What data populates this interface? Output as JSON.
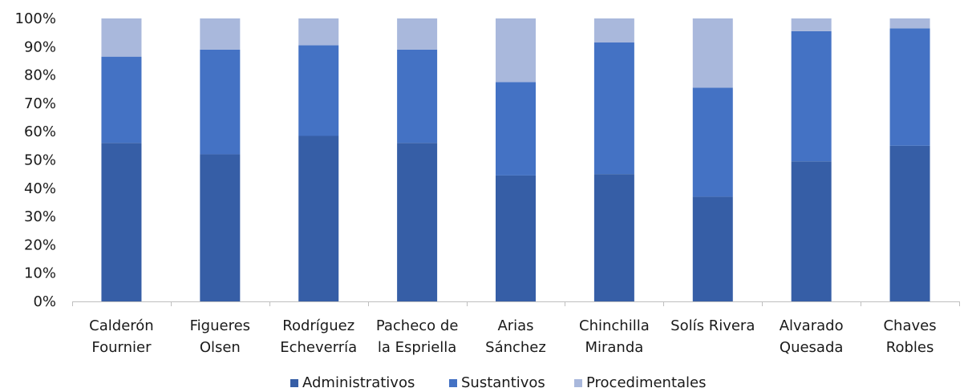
{
  "chart_data": {
    "type": "bar",
    "stacked": true,
    "percent": true,
    "categories": [
      [
        "Calderón",
        "Fournier"
      ],
      [
        "Figueres",
        "Olsen"
      ],
      [
        "Rodríguez",
        "Echeverría"
      ],
      [
        "Pacheco de",
        "la Espriella"
      ],
      [
        "Arias",
        "Sánchez"
      ],
      [
        "Chinchilla",
        "Miranda"
      ],
      [
        "Solís Rivera"
      ],
      [
        "Alvarado",
        "Quesada"
      ],
      [
        "Chaves",
        "Robles"
      ]
    ],
    "series": [
      {
        "name": "Administrativos",
        "color": "#365ea6",
        "values": [
          56,
          52,
          58.5,
          56,
          44.5,
          45,
          37,
          49.5,
          55
        ]
      },
      {
        "name": "Sustantivos",
        "color": "#4472c4",
        "values": [
          30.5,
          37,
          32,
          33,
          33,
          46.5,
          38.5,
          46,
          41.5
        ]
      },
      {
        "name": "Procedimentales",
        "color": "#a9b8dc",
        "values": [
          13.5,
          11,
          9.5,
          11,
          22.5,
          8.5,
          24.5,
          4.5,
          3.5
        ]
      }
    ],
    "yticks": [
      "0%",
      "10%",
      "20%",
      "30%",
      "40%",
      "50%",
      "60%",
      "70%",
      "80%",
      "90%",
      "100%"
    ],
    "ylim": [
      0,
      100
    ],
    "grid": false,
    "legend_position": "bottom"
  }
}
